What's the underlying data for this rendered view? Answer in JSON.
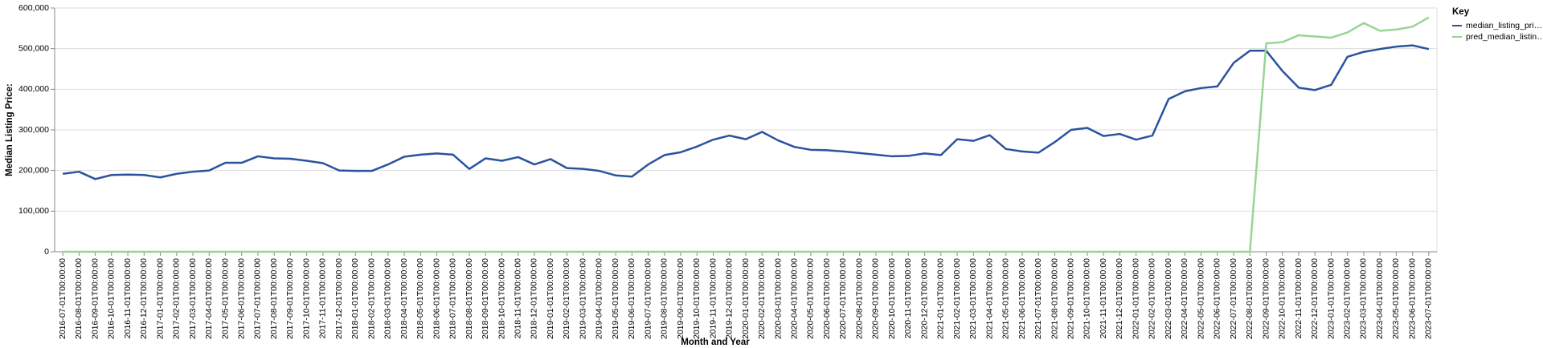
{
  "chart_data": {
    "type": "line",
    "x_label": "Month and Year",
    "y_label": "Median Listing Price:",
    "legend_title": "Key",
    "legend": "right",
    "grid": true,
    "categories": [
      "2016-07-01T00:00:00",
      "2016-08-01T00:00:00",
      "2016-09-01T00:00:00",
      "2016-10-01T00:00:00",
      "2016-11-01T00:00:00",
      "2016-12-01T00:00:00",
      "2017-01-01T00:00:00",
      "2017-02-01T00:00:00",
      "2017-03-01T00:00:00",
      "2017-04-01T00:00:00",
      "2017-05-01T00:00:00",
      "2017-06-01T00:00:00",
      "2017-07-01T00:00:00",
      "2017-08-01T00:00:00",
      "2017-09-01T00:00:00",
      "2017-10-01T00:00:00",
      "2017-11-01T00:00:00",
      "2017-12-01T00:00:00",
      "2018-01-01T00:00:00",
      "2018-02-01T00:00:00",
      "2018-03-01T00:00:00",
      "2018-04-01T00:00:00",
      "2018-05-01T00:00:00",
      "2018-06-01T00:00:00",
      "2018-07-01T00:00:00",
      "2018-08-01T00:00:00",
      "2018-09-01T00:00:00",
      "2018-10-01T00:00:00",
      "2018-11-01T00:00:00",
      "2018-12-01T00:00:00",
      "2019-01-01T00:00:00",
      "2019-02-01T00:00:00",
      "2019-03-01T00:00:00",
      "2019-04-01T00:00:00",
      "2019-05-01T00:00:00",
      "2019-06-01T00:00:00",
      "2019-07-01T00:00:00",
      "2019-08-01T00:00:00",
      "2019-09-01T00:00:00",
      "2019-10-01T00:00:00",
      "2019-11-01T00:00:00",
      "2019-12-01T00:00:00",
      "2020-01-01T00:00:00",
      "2020-02-01T00:00:00",
      "2020-03-01T00:00:00",
      "2020-04-01T00:00:00",
      "2020-05-01T00:00:00",
      "2020-06-01T00:00:00",
      "2020-07-01T00:00:00",
      "2020-08-01T00:00:00",
      "2020-09-01T00:00:00",
      "2020-10-01T00:00:00",
      "2020-11-01T00:00:00",
      "2020-12-01T00:00:00",
      "2021-01-01T00:00:00",
      "2021-02-01T00:00:00",
      "2021-03-01T00:00:00",
      "2021-04-01T00:00:00",
      "2021-05-01T00:00:00",
      "2021-06-01T00:00:00",
      "2021-07-01T00:00:00",
      "2021-08-01T00:00:00",
      "2021-09-01T00:00:00",
      "2021-10-01T00:00:00",
      "2021-11-01T00:00:00",
      "2021-12-01T00:00:00",
      "2022-01-01T00:00:00",
      "2022-02-01T00:00:00",
      "2022-03-01T00:00:00",
      "2022-04-01T00:00:00",
      "2022-05-01T00:00:00",
      "2022-06-01T00:00:00",
      "2022-07-01T00:00:00",
      "2022-08-01T00:00:00",
      "2022-09-01T00:00:00",
      "2022-10-01T00:00:00",
      "2022-11-01T00:00:00",
      "2022-12-01T00:00:00",
      "2023-01-01T00:00:00",
      "2023-02-01T00:00:00",
      "2023-03-01T00:00:00",
      "2023-04-01T00:00:00",
      "2023-05-01T00:00:00",
      "2023-06-01T00:00:00",
      "2023-07-01T00:00:00"
    ],
    "series": [
      {
        "name": "median_listing_pri…",
        "color": "#2a539e",
        "values": [
          192000,
          197000,
          179000,
          189000,
          190000,
          189000,
          183000,
          192000,
          197000,
          200000,
          219000,
          219000,
          235000,
          230000,
          229000,
          224000,
          218000,
          200000,
          199000,
          199000,
          215000,
          234000,
          239000,
          242000,
          239000,
          204000,
          230000,
          224000,
          233000,
          215000,
          228000,
          206000,
          204000,
          199000,
          188000,
          185000,
          215000,
          238000,
          245000,
          259000,
          276000,
          286000,
          277000,
          295000,
          274000,
          258000,
          251000,
          250000,
          247000,
          243000,
          239000,
          235000,
          236000,
          242000,
          238000,
          277000,
          273000,
          287000,
          253000,
          247000,
          244000,
          270000,
          300000,
          305000,
          285000,
          290000,
          276000,
          286000,
          376000,
          395000,
          403000,
          407000,
          465000,
          495000,
          495000,
          445000,
          404000,
          398000,
          411000,
          480000,
          492000,
          499000,
          505000,
          508000,
          499000
        ]
      },
      {
        "name": "pred_median_listin…",
        "color": "#98d594",
        "values": [
          0,
          0,
          0,
          0,
          0,
          0,
          0,
          0,
          0,
          0,
          0,
          0,
          0,
          0,
          0,
          0,
          0,
          0,
          0,
          0,
          0,
          0,
          0,
          0,
          0,
          0,
          0,
          0,
          0,
          0,
          0,
          0,
          0,
          0,
          0,
          0,
          0,
          0,
          0,
          0,
          0,
          0,
          0,
          0,
          0,
          0,
          0,
          0,
          0,
          0,
          0,
          0,
          0,
          0,
          0,
          0,
          0,
          0,
          0,
          0,
          0,
          0,
          0,
          0,
          0,
          0,
          0,
          0,
          0,
          0,
          0,
          0,
          0,
          0,
          513000,
          516000,
          533000,
          530000,
          527000,
          540000,
          563000,
          544000,
          547000,
          554000,
          577000
        ]
      }
    ],
    "ylim": [
      0,
      600000
    ],
    "yticks": [
      {
        "value": 0,
        "label": "0"
      },
      {
        "value": 100000,
        "label": "100,000"
      },
      {
        "value": 200000,
        "label": "200,000"
      },
      {
        "value": 300000,
        "label": "300,000"
      },
      {
        "value": 400000,
        "label": "400,000"
      },
      {
        "value": 500000,
        "label": "500,000"
      },
      {
        "value": 600000,
        "label": "600,000"
      }
    ]
  }
}
